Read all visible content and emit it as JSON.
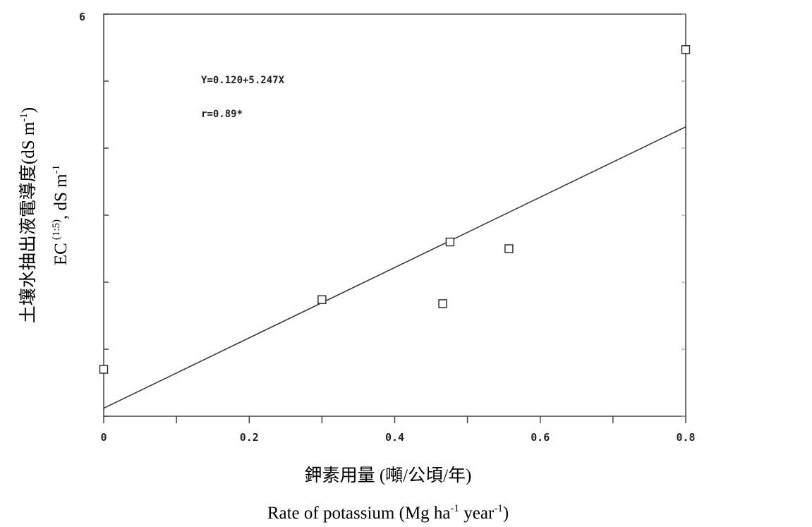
{
  "chart_data": {
    "type": "scatter",
    "x": [
      0.0,
      0.3,
      0.466,
      0.476,
      0.557,
      0.8
    ],
    "y": [
      0.7,
      1.74,
      1.68,
      2.6,
      2.5,
      5.47
    ],
    "xlim": [
      0,
      0.8
    ],
    "ylim": [
      0,
      6
    ],
    "xticks": [
      "0",
      "0.2",
      "0.4",
      "0.6",
      "0.8"
    ],
    "yticks": [
      "6"
    ],
    "fit_line": {
      "intercept": 0.12,
      "slope": 5.247
    },
    "annotations": [
      "Y=0.120+5.247X",
      "r=0.89*"
    ],
    "xlabel_zh": "鉀素用量 (噸/公頃/年)",
    "xlabel_en": "Rate of potassium (Mg ha",
    "xlabel_sup1": "-1",
    "xlabel_mid": " year",
    "xlabel_sup2": "-1",
    "xlabel_end": ")",
    "ylabel_zh": "土壤水抽出液電導度(dS m",
    "ylabel_zh_sup": "-1",
    "ylabel_zh_end": ")",
    "ylabel_en": "EC",
    "ylabel_en_sup": "(1:5)",
    "ylabel_en_unit": ", dS m",
    "ylabel_en_unit_sup": "-1",
    "grid": false,
    "marker": "open-square"
  }
}
